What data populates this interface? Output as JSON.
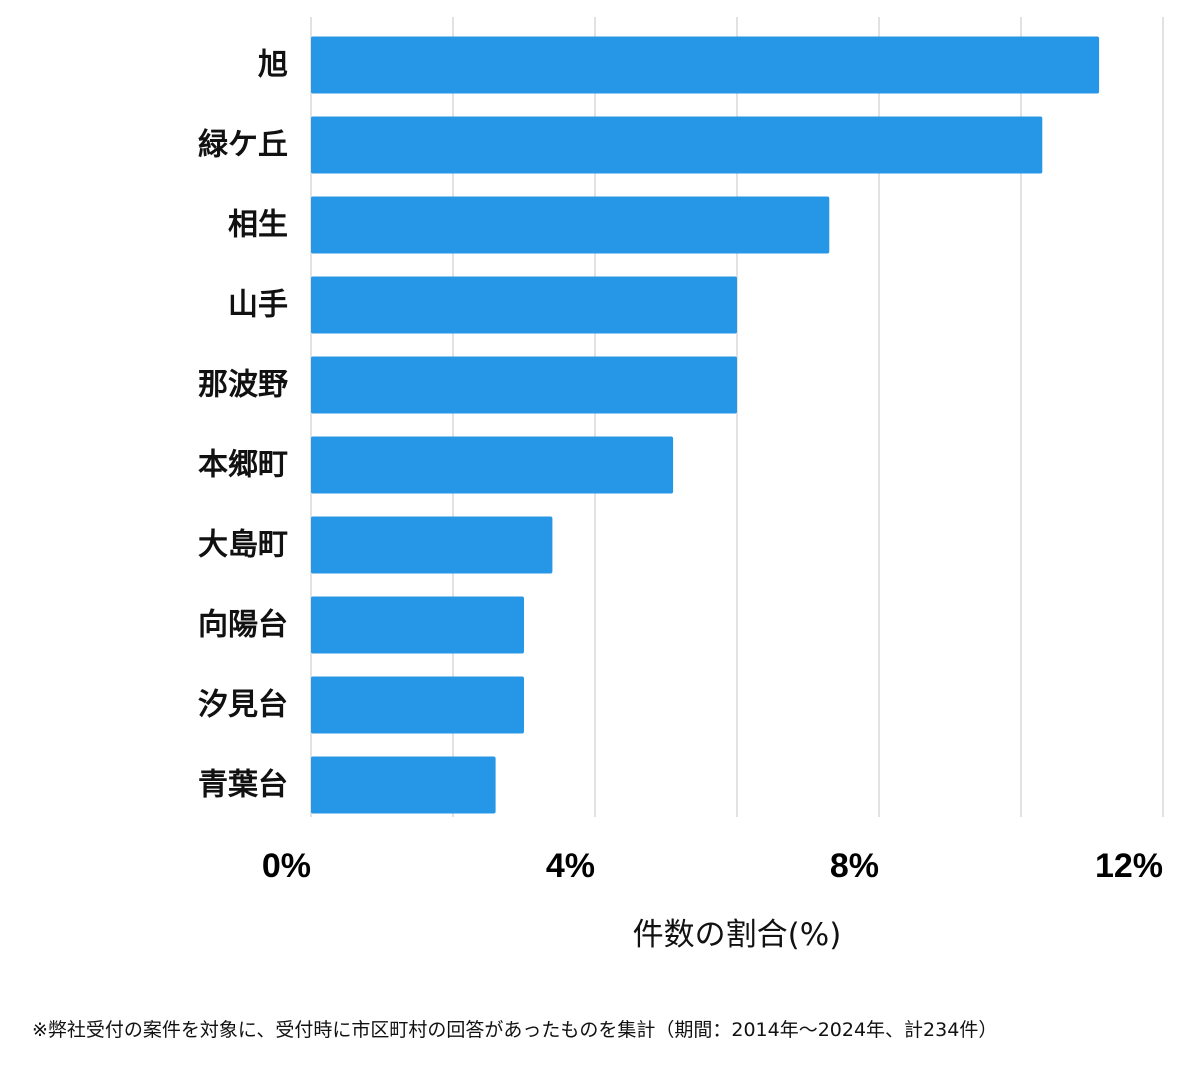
{
  "chart_data": {
    "type": "bar",
    "orientation": "horizontal",
    "categories": [
      "旭",
      "緑ケ丘",
      "相生",
      "山手",
      "那波野",
      "本郷町",
      "大島町",
      "向陽台",
      "汐見台",
      "青葉台"
    ],
    "values": [
      11.1,
      10.3,
      7.3,
      6.0,
      6.0,
      5.1,
      3.4,
      3.0,
      3.0,
      2.6
    ],
    "xlim": [
      0,
      12
    ],
    "xticks": [
      {
        "value": 0,
        "label": "0%"
      },
      {
        "value": 4,
        "label": "4%"
      },
      {
        "value": 8,
        "label": "8%"
      },
      {
        "value": 12,
        "label": "12%"
      }
    ],
    "grid_values": [
      0,
      2,
      4,
      6,
      8,
      10,
      12
    ],
    "xlabel": "件数の割合(%)",
    "ylabel": "",
    "grid": true,
    "bar_color": "#2696e6",
    "grid_color": "#d9d9d9"
  },
  "footnote": "※弊社受付の案件を対象に、受付時に市区町村の回答があったものを集計（期間：2014年～2024年、計234件）"
}
